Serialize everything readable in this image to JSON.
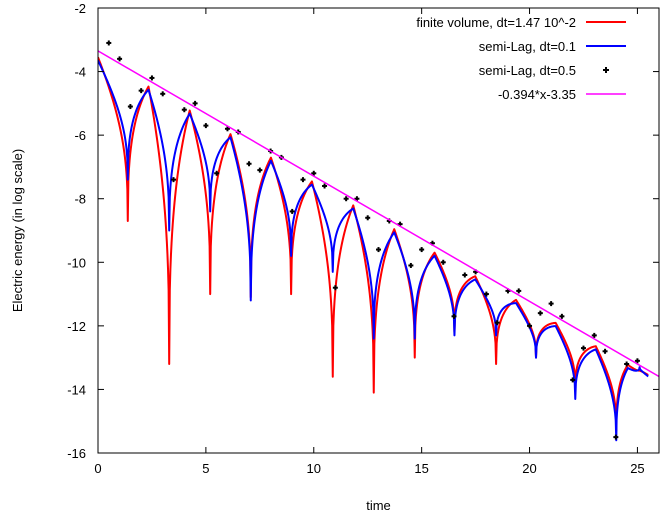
{
  "chart_data": {
    "type": "line",
    "title": "",
    "xlabel": "time",
    "ylabel": "Electric energy (in log scale)",
    "xlim": [
      0,
      26
    ],
    "ylim": [
      -16,
      -2
    ],
    "xticks": [
      0,
      5,
      10,
      15,
      20,
      25
    ],
    "yticks": [
      -16,
      -14,
      -12,
      -10,
      -8,
      -6,
      -4,
      -2
    ],
    "grid": false,
    "legend": "top-right",
    "series": [
      {
        "name": "finite volume, dt=1.47 10^-2",
        "kind": "line",
        "color": "#ff0000",
        "base_offset": 0.2,
        "lobe_sharpness": 0.36,
        "troughs": [
          {
            "t": 1.38,
            "y": -8.7
          },
          {
            "t": 3.3,
            "y": -13.2
          },
          {
            "t": 5.2,
            "y": -11.0
          },
          {
            "t": 7.08,
            "y": -11.1
          },
          {
            "t": 8.95,
            "y": -11.0
          },
          {
            "t": 10.88,
            "y": -13.6
          },
          {
            "t": 12.78,
            "y": -14.1
          },
          {
            "t": 14.68,
            "y": -13.0
          },
          {
            "t": 16.52,
            "y": -12.2
          },
          {
            "t": 18.45,
            "y": -13.2
          },
          {
            "t": 20.3,
            "y": -13.0
          },
          {
            "t": 22.12,
            "y": -14.0
          },
          {
            "t": 24.02,
            "y": -15.3
          },
          {
            "t": 25.1,
            "y": -13.4
          }
        ]
      },
      {
        "name": "semi-Lag, dt=0.1",
        "kind": "line",
        "color": "#0000ff",
        "base_offset": 0.3,
        "lobe_sharpness": 0.38,
        "troughs": [
          {
            "t": 1.38,
            "y": -7.4
          },
          {
            "t": 3.3,
            "y": -9.0
          },
          {
            "t": 5.2,
            "y": -8.4
          },
          {
            "t": 7.08,
            "y": -11.2
          },
          {
            "t": 8.95,
            "y": -9.8
          },
          {
            "t": 10.88,
            "y": -10.3
          },
          {
            "t": 12.78,
            "y": -12.4
          },
          {
            "t": 14.68,
            "y": -12.4
          },
          {
            "t": 16.52,
            "y": -12.3
          },
          {
            "t": 18.45,
            "y": -12.3
          },
          {
            "t": 20.3,
            "y": -13.0
          },
          {
            "t": 22.12,
            "y": -14.3
          },
          {
            "t": 24.02,
            "y": -15.6
          },
          {
            "t": 25.1,
            "y": -13.3
          }
        ]
      },
      {
        "name": "semi-Lag, dt=0.5",
        "kind": "points",
        "color": "#000000",
        "points": [
          [
            0.5,
            -3.1
          ],
          [
            1.0,
            -3.6
          ],
          [
            1.5,
            -5.1
          ],
          [
            2.0,
            -4.6
          ],
          [
            2.5,
            -4.2
          ],
          [
            3.0,
            -4.7
          ],
          [
            3.5,
            -7.4
          ],
          [
            4.0,
            -5.2
          ],
          [
            4.5,
            -5.0
          ],
          [
            5.0,
            -5.7
          ],
          [
            5.5,
            -7.2
          ],
          [
            6.0,
            -5.8
          ],
          [
            6.5,
            -5.9
          ],
          [
            7.0,
            -6.9
          ],
          [
            7.5,
            -7.1
          ],
          [
            8.0,
            -6.5
          ],
          [
            8.5,
            -6.7
          ],
          [
            9.0,
            -8.4
          ],
          [
            9.5,
            -7.4
          ],
          [
            10.0,
            -7.2
          ],
          [
            10.5,
            -7.6
          ],
          [
            11.0,
            -10.8
          ],
          [
            11.5,
            -8.0
          ],
          [
            12.0,
            -8.0
          ],
          [
            12.5,
            -8.6
          ],
          [
            13.0,
            -9.6
          ],
          [
            13.5,
            -8.7
          ],
          [
            14.0,
            -8.8
          ],
          [
            14.5,
            -10.1
          ],
          [
            15.0,
            -9.6
          ],
          [
            15.5,
            -9.4
          ],
          [
            16.0,
            -10.0
          ],
          [
            16.5,
            -11.7
          ],
          [
            17.0,
            -10.4
          ],
          [
            17.5,
            -10.3
          ],
          [
            18.0,
            -11.0
          ],
          [
            18.5,
            -11.9
          ],
          [
            19.0,
            -10.9
          ],
          [
            19.5,
            -10.9
          ],
          [
            20.0,
            -12.0
          ],
          [
            20.5,
            -11.6
          ],
          [
            21.0,
            -11.3
          ],
          [
            21.5,
            -11.7
          ],
          [
            22.0,
            -13.7
          ],
          [
            22.5,
            -12.7
          ],
          [
            23.0,
            -12.3
          ],
          [
            23.5,
            -12.8
          ],
          [
            24.0,
            -15.5
          ],
          [
            24.5,
            -13.2
          ],
          [
            25.0,
            -13.1
          ]
        ]
      },
      {
        "name": "-0.394*x-3.35",
        "kind": "function",
        "color": "#ff00ff",
        "slope": -0.394,
        "intercept": -3.35,
        "x_range": [
          0,
          26
        ]
      }
    ]
  }
}
